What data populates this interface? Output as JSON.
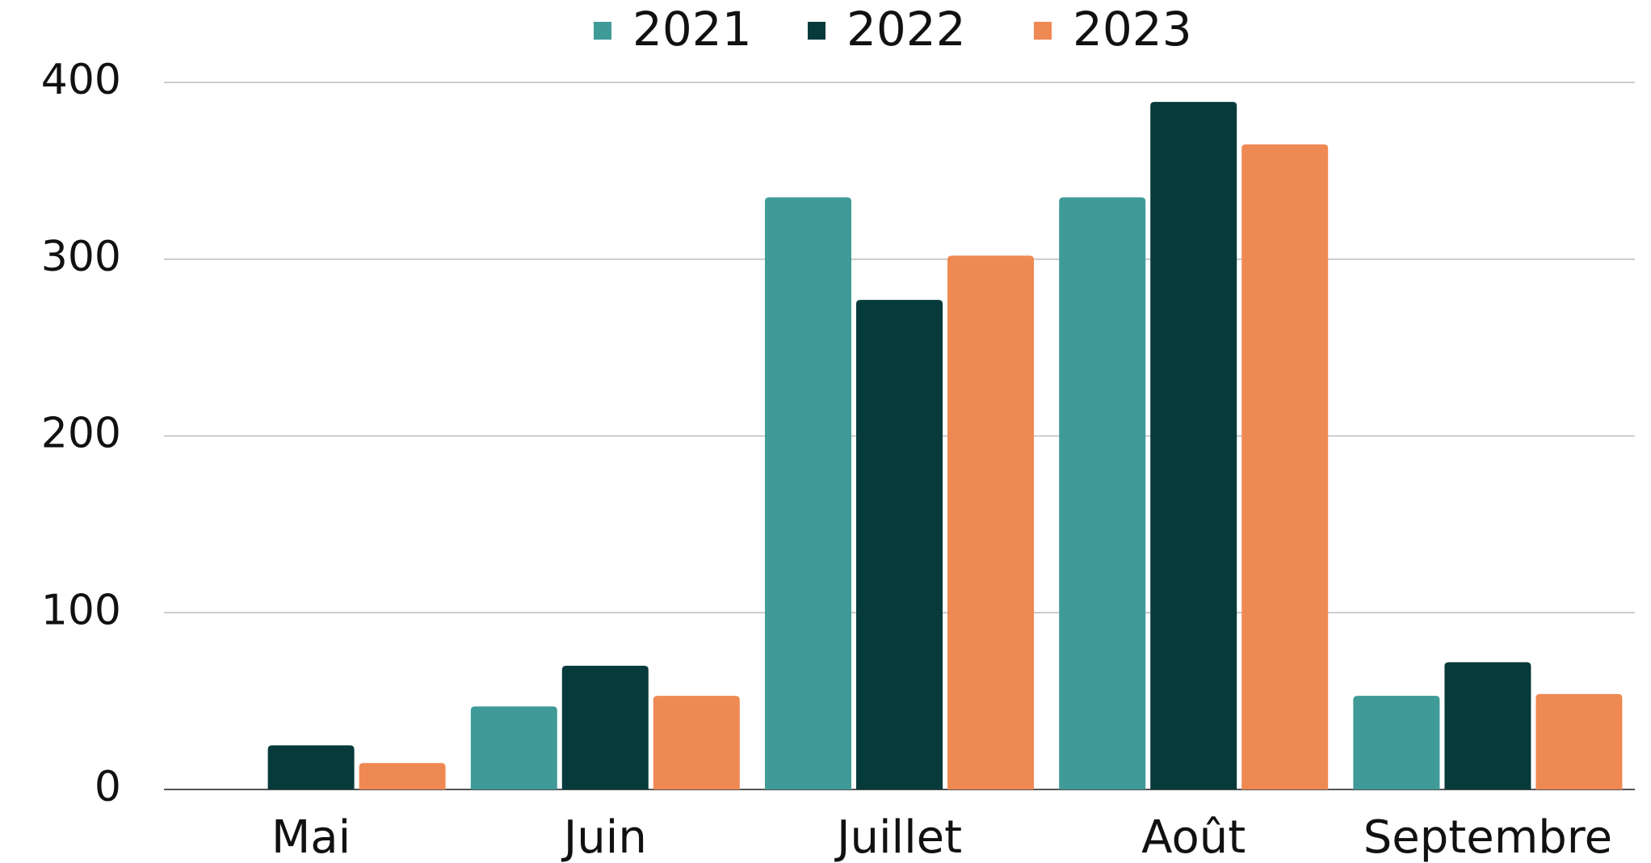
{
  "chart_data": {
    "type": "bar",
    "categories": [
      "Mai",
      "Juin",
      "Juillet",
      "Août",
      "Septembre"
    ],
    "series": [
      {
        "name": "2021",
        "color": "#3f9a98",
        "values": [
          0,
          47,
          335,
          335,
          53
        ]
      },
      {
        "name": "2022",
        "color": "#073a3a",
        "values": [
          25,
          70,
          277,
          389,
          72
        ]
      },
      {
        "name": "2023",
        "color": "#ef8953",
        "values": [
          15,
          53,
          302,
          365,
          54
        ]
      }
    ],
    "ylim": [
      0,
      400
    ],
    "yticks": [
      0,
      100,
      200,
      300,
      400
    ],
    "grid": true,
    "legend": "top"
  }
}
